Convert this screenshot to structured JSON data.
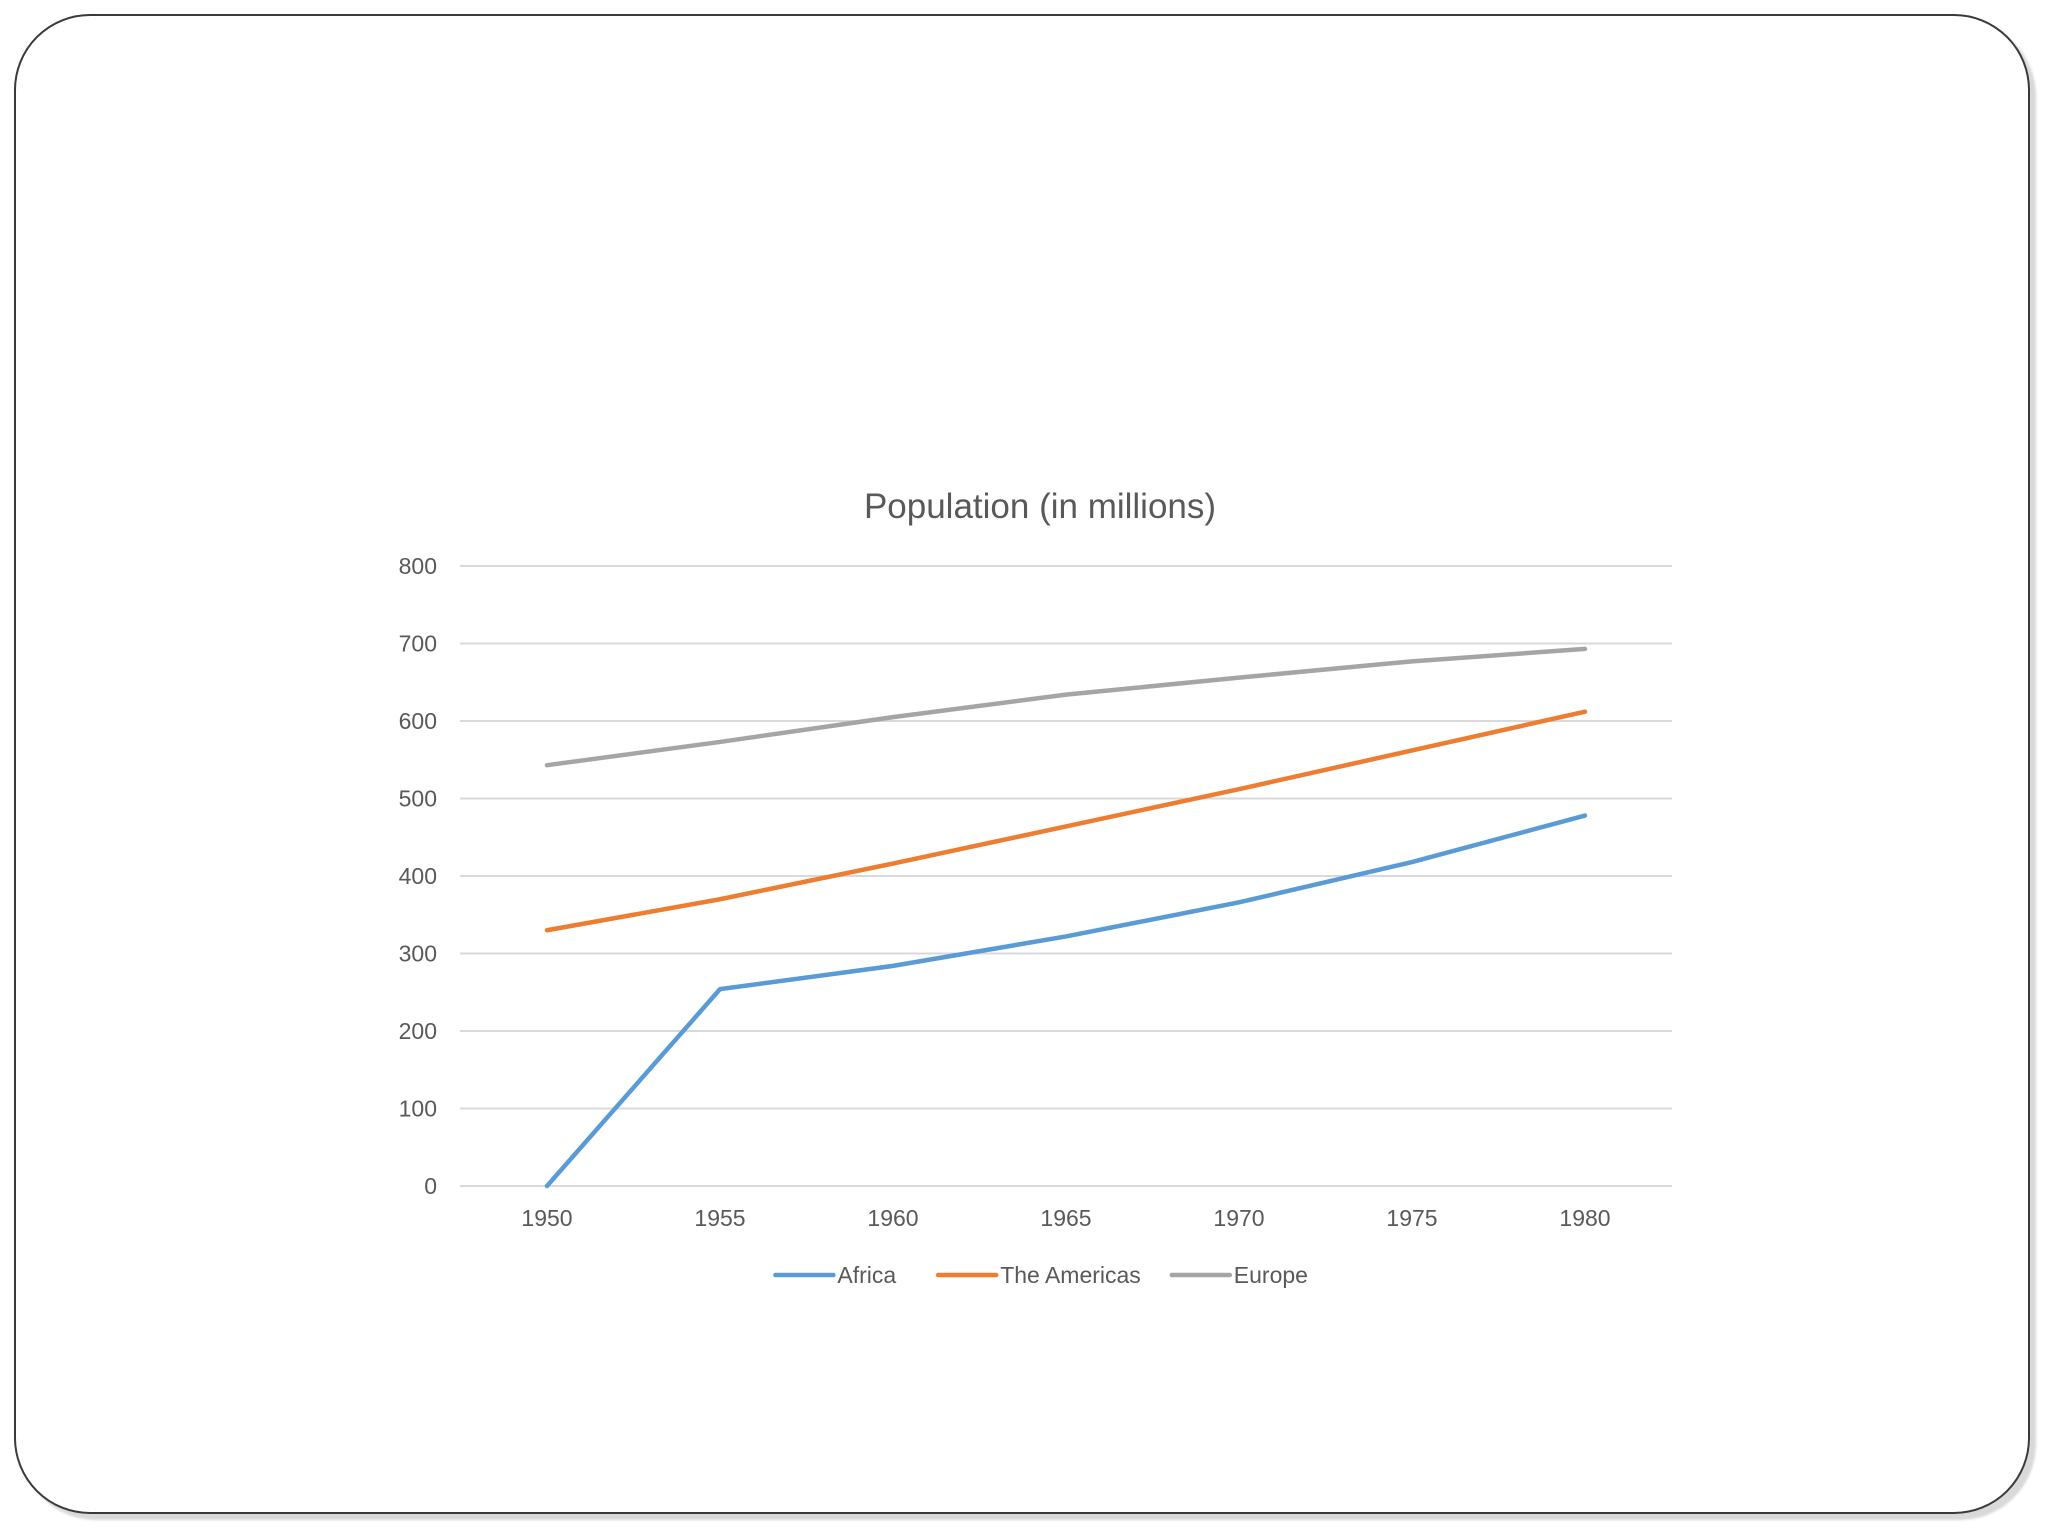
{
  "chart_data": {
    "type": "line",
    "title": "Population (in millions)",
    "xlabel": "",
    "ylabel": "",
    "categories": [
      "1950",
      "1955",
      "1960",
      "1965",
      "1970",
      "1975",
      "1980"
    ],
    "ylim": [
      0,
      800
    ],
    "yticks": [
      "0",
      "100",
      "200",
      "300",
      "400",
      "500",
      "600",
      "700",
      "800"
    ],
    "grid": "horizontal",
    "legend_position": "bottom",
    "series": [
      {
        "name": "Africa",
        "color": "#5B9BD5",
        "values": [
          0,
          254,
          284,
          322,
          366,
          418,
          478
        ]
      },
      {
        "name": "The Americas",
        "color": "#ED7D31",
        "values": [
          330,
          370,
          416,
          464,
          512,
          562,
          612
        ]
      },
      {
        "name": "Europe",
        "color": "#A5A5A5",
        "values": [
          543,
          573,
          605,
          634,
          656,
          677,
          693
        ]
      }
    ]
  }
}
